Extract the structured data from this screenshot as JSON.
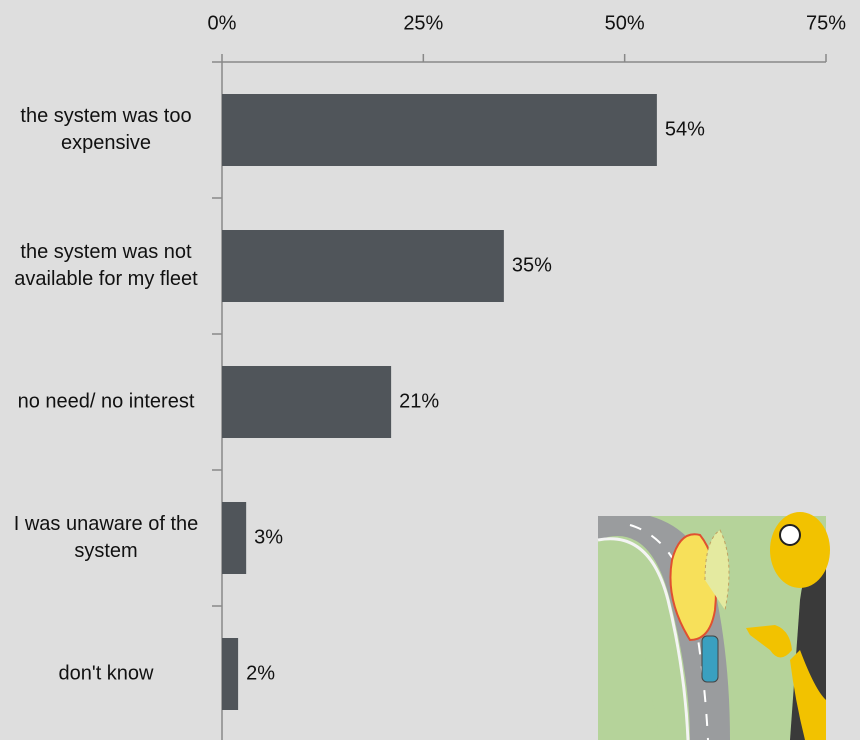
{
  "chart_data": {
    "type": "bar",
    "orientation": "horizontal",
    "categories": [
      "the system was too expensive",
      "the system was not available for my fleet",
      "no need/ no interest",
      "I was unaware of the system",
      "don't know"
    ],
    "values": [
      54,
      35,
      21,
      3,
      2
    ],
    "value_labels": [
      "54%",
      "35%",
      "21%",
      "3%",
      "2%"
    ],
    "color": "#50555a",
    "xlim": [
      0,
      75
    ],
    "xticks": [
      {
        "value": 0,
        "label": "0%"
      },
      {
        "value": 25,
        "label": "25%"
      },
      {
        "value": 50,
        "label": "50%"
      },
      {
        "value": 75,
        "label": "75%"
      }
    ]
  }
}
